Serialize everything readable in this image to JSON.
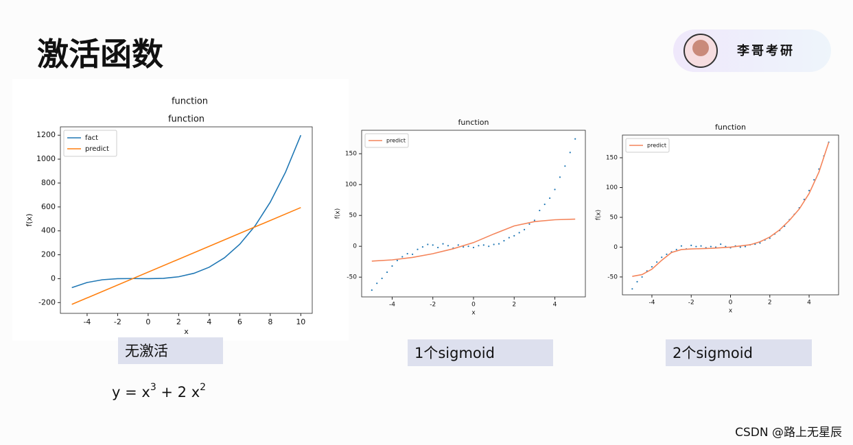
{
  "title": "激活函数",
  "author": "李哥考研",
  "captions": [
    "无激活",
    "1个sigmoid",
    "2个sigmoid"
  ],
  "formula": [
    "y = x",
    "3",
    " + 2 x",
    "2"
  ],
  "watermark": "CSDN @路上无星辰",
  "chart_data": [
    {
      "type": "line",
      "suptitle": "function",
      "title": "function",
      "xlabel": "x",
      "ylabel": "f(x)",
      "xlim": [
        -5.75,
        10.75
      ],
      "ylim": [
        -290,
        1270
      ],
      "xticks": [
        -4,
        -2,
        0,
        2,
        4,
        6,
        8,
        10
      ],
      "yticks": [
        -200,
        0,
        200,
        400,
        600,
        800,
        1000,
        1200
      ],
      "legend": "upper left",
      "series": [
        {
          "name": "fact",
          "color": "#1f77b4",
          "style": "line",
          "x": [
            -5,
            -4,
            -3,
            -2,
            -1,
            0,
            1,
            2,
            3,
            4,
            5,
            6,
            7,
            8,
            9,
            10
          ],
          "values": [
            -75,
            -32,
            -9,
            0,
            1,
            0,
            3,
            16,
            45,
            96,
            175,
            288,
            441,
            640,
            891,
            1200
          ]
        },
        {
          "name": "predict",
          "color": "#ff7f0e",
          "style": "line",
          "x": [
            -5,
            10
          ],
          "values": [
            -215,
            595
          ]
        }
      ]
    },
    {
      "type": "line",
      "title": "function",
      "xlabel": "x",
      "ylabel": "f(x)",
      "xlim": [
        -5.5,
        5.5
      ],
      "ylim": [
        -82,
        188
      ],
      "xticks": [
        -4,
        -2,
        0,
        2,
        4
      ],
      "yticks": [
        -50,
        0,
        50,
        100,
        150
      ],
      "legend": "upper left",
      "series": [
        {
          "color": "#1f77b4",
          "style": "markers",
          "x": [
            -5,
            -4.75,
            -4.5,
            -4.25,
            -4,
            -3.75,
            -3.5,
            -3.25,
            -3,
            -2.75,
            -2.5,
            -2.25,
            -2,
            -1.75,
            -1.5,
            -1.25,
            -1,
            -0.75,
            -0.5,
            -0.25,
            0,
            0.25,
            0.5,
            0.75,
            1,
            1.25,
            1.5,
            1.75,
            2,
            2.25,
            2.5,
            2.75,
            3,
            3.25,
            3.5,
            3.75,
            4,
            4.25,
            4.5,
            4.75,
            5
          ],
          "values": [
            -71,
            -60,
            -52,
            -42,
            -32,
            -23,
            -17,
            -12,
            -13,
            -5,
            -1,
            3,
            2,
            -2,
            4,
            1,
            -3,
            2,
            -1,
            0,
            -2,
            1,
            2,
            0,
            3,
            4,
            9,
            14,
            17,
            22,
            27,
            36,
            42,
            58,
            68,
            78,
            92,
            112,
            130,
            152,
            174
          ]
        },
        {
          "name": "predict",
          "color": "#f4845a",
          "style": "line",
          "x": [
            -5,
            -4,
            -3,
            -2,
            -1,
            0,
            1,
            2,
            3,
            4,
            5
          ],
          "values": [
            -24,
            -22,
            -18,
            -12,
            -4,
            6,
            20,
            33,
            40,
            43,
            44
          ]
        }
      ]
    },
    {
      "type": "line",
      "title": "function",
      "xlabel": "x",
      "ylabel": "f(x)",
      "xlim": [
        -5.5,
        5.5
      ],
      "ylim": [
        -80,
        188
      ],
      "xticks": [
        -4,
        -2,
        0,
        2,
        4
      ],
      "yticks": [
        -50,
        0,
        50,
        100,
        150
      ],
      "legend": "upper left",
      "series": [
        {
          "color": "#1f77b4",
          "style": "markers",
          "x": [
            -5,
            -4.75,
            -4.5,
            -4.25,
            -4,
            -3.75,
            -3.5,
            -3.25,
            -3,
            -2.75,
            -2.5,
            -2.25,
            -2,
            -1.75,
            -1.5,
            -1.25,
            -1,
            -0.75,
            -0.5,
            -0.25,
            0,
            0.25,
            0.5,
            0.75,
            1,
            1.25,
            1.5,
            1.75,
            2,
            2.25,
            2.5,
            2.75,
            3,
            3.25,
            3.5,
            3.75,
            4,
            4.25,
            4.5,
            4.75,
            5
          ],
          "values": [
            -70,
            -58,
            -50,
            -40,
            -33,
            -25,
            -17,
            -12,
            -8,
            -4,
            2,
            -3,
            3,
            1,
            2,
            -1,
            1,
            0,
            5,
            1,
            -1,
            2,
            0,
            1,
            4,
            5,
            7,
            12,
            15,
            22,
            28,
            35,
            46,
            55,
            66,
            80,
            95,
            113,
            131,
            153,
            176
          ]
        },
        {
          "name": "predict",
          "color": "#f4845a",
          "style": "line",
          "x": [
            -5,
            -4.5,
            -4,
            -3.5,
            -3,
            -2.5,
            -2,
            -1,
            0,
            1,
            1.5,
            2,
            2.5,
            3,
            3.5,
            4,
            4.5,
            5
          ],
          "values": [
            -49,
            -46,
            -37,
            -22,
            -9,
            -4,
            -3,
            -2,
            0,
            4,
            9,
            17,
            29,
            45,
            64,
            90,
            126,
            176
          ]
        }
      ]
    }
  ]
}
